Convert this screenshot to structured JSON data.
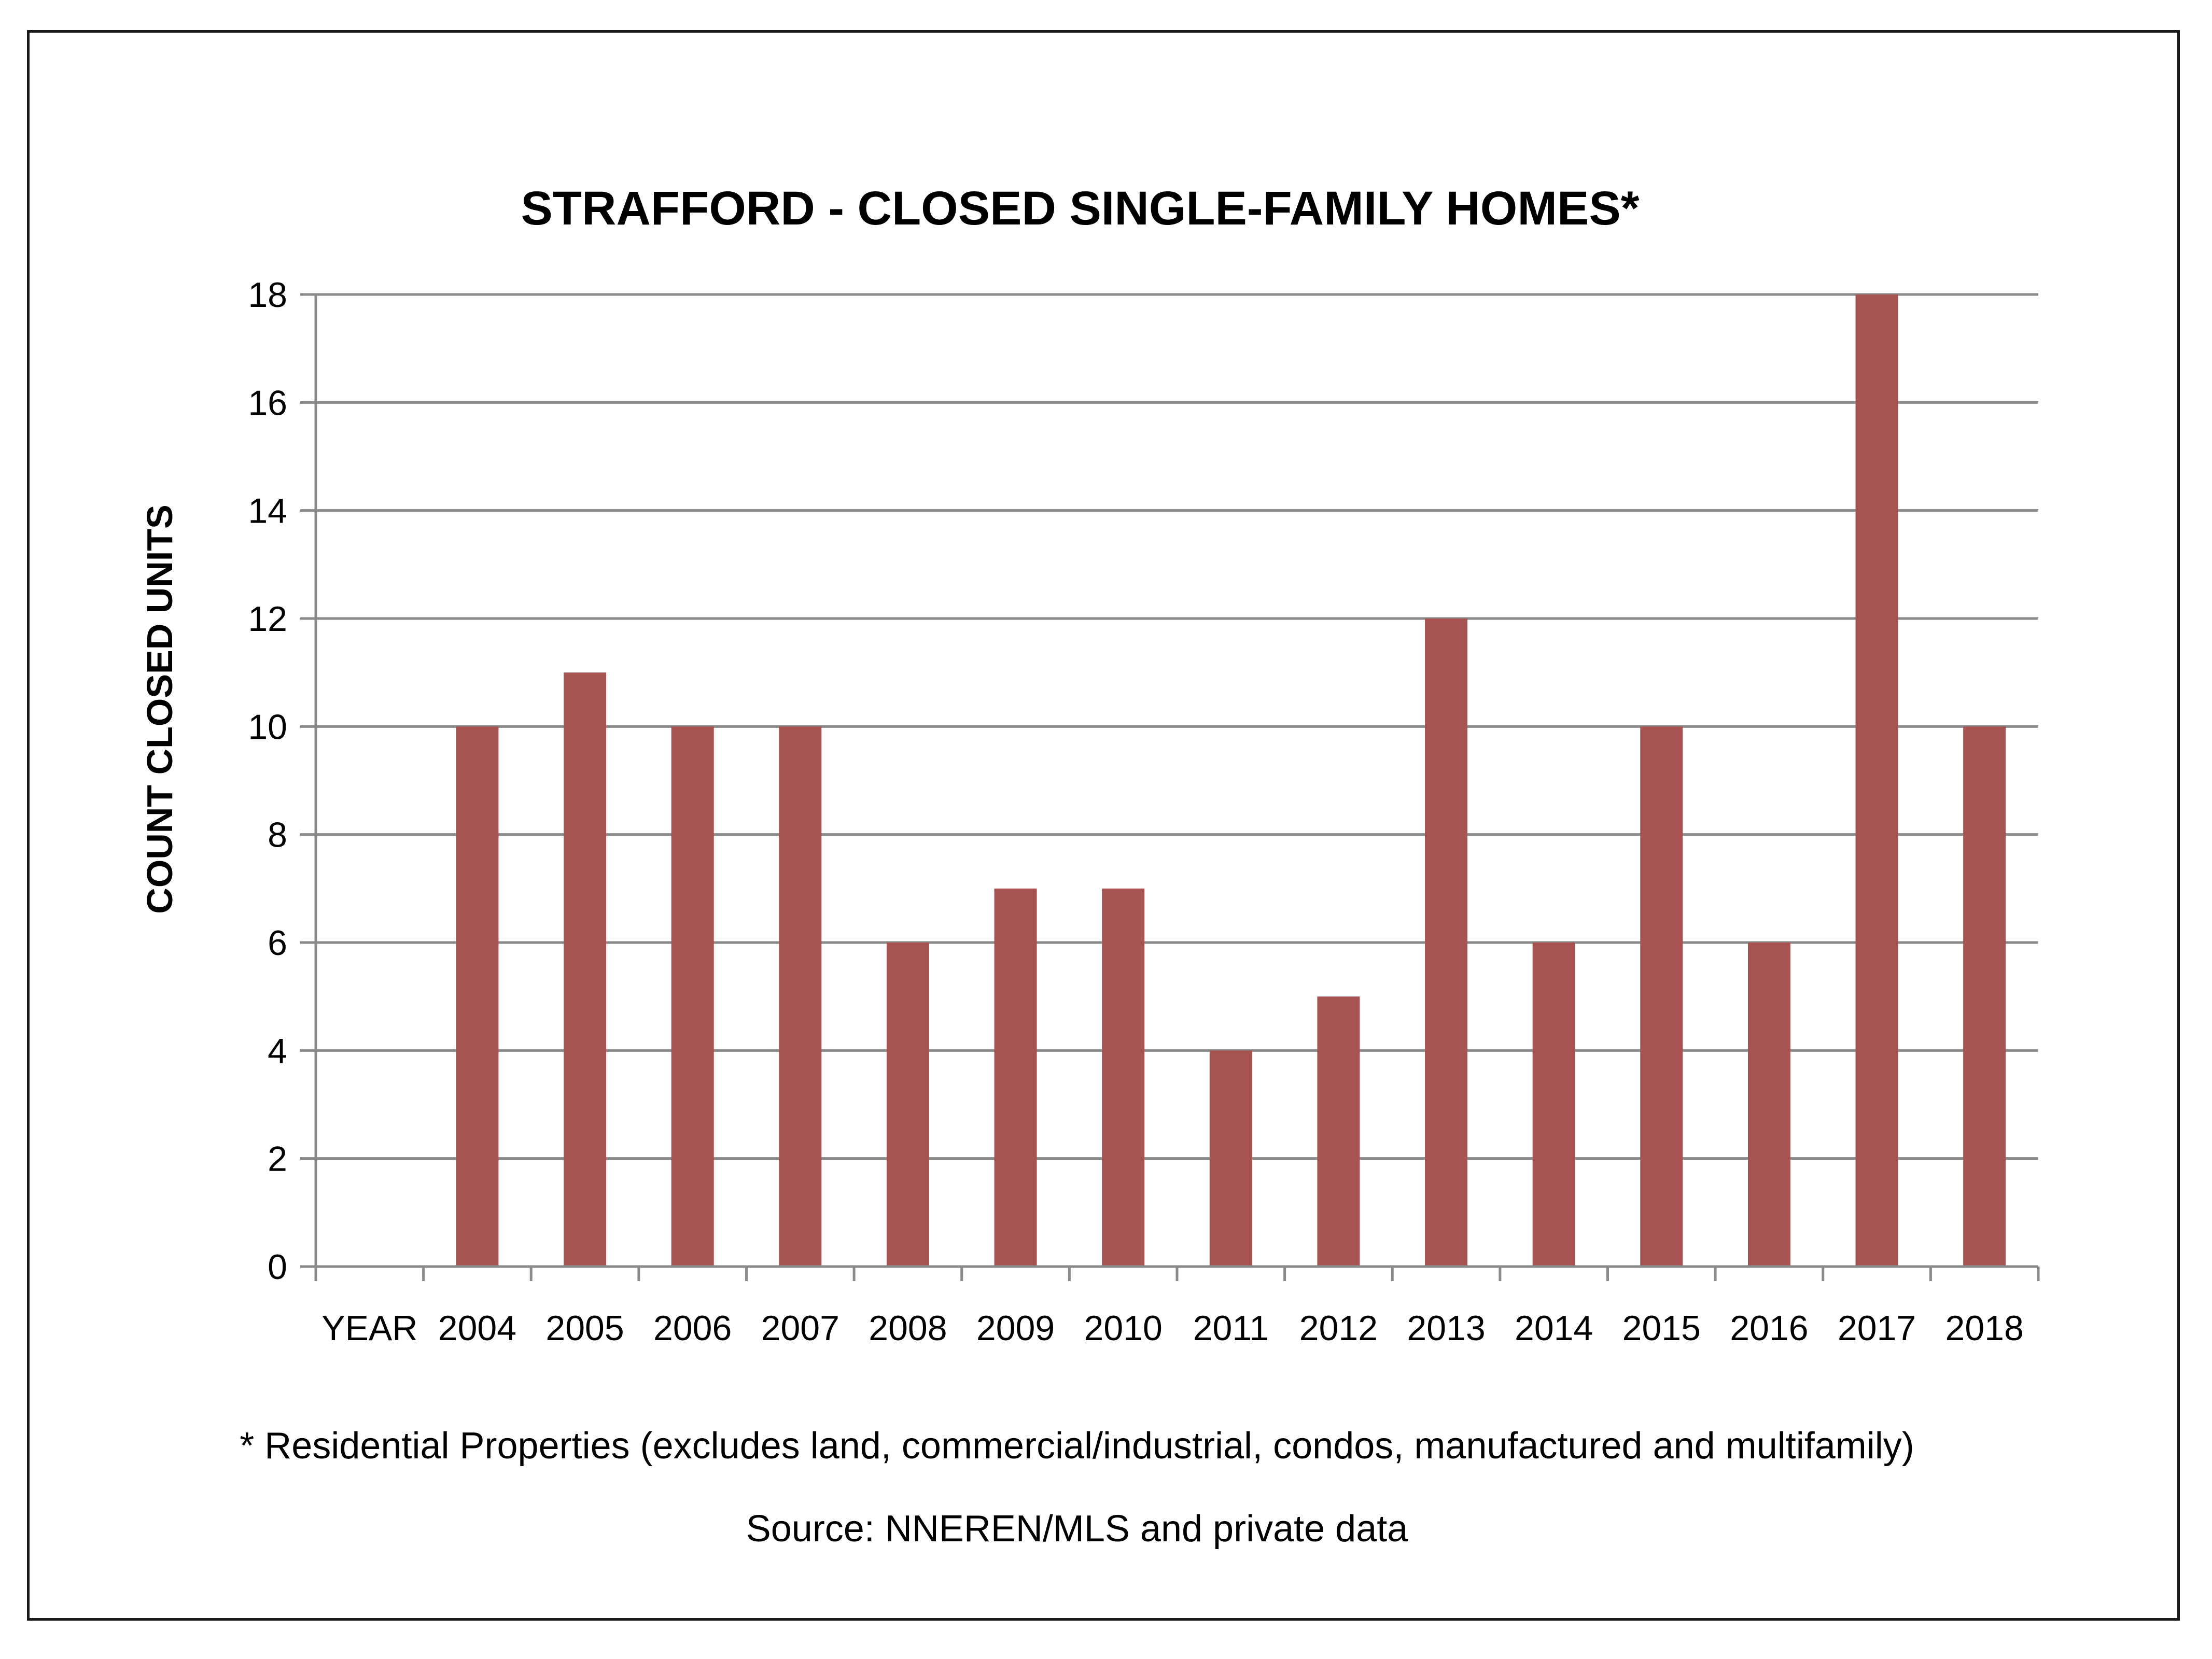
{
  "chart_data": {
    "type": "bar",
    "title": "STRAFFORD - CLOSED SINGLE-FAMILY HOMES*",
    "xlabel": "",
    "ylabel": "COUNT CLOSED UNITS",
    "categories": [
      "YEAR",
      "2004",
      "2005",
      "2006",
      "2007",
      "2008",
      "2009",
      "2010",
      "2011",
      "2012",
      "2013",
      "2014",
      "2015",
      "2016",
      "2017",
      "2018"
    ],
    "values": [
      null,
      10,
      11,
      10,
      10,
      6,
      7,
      7,
      4,
      5,
      12,
      6,
      10,
      6,
      18,
      10
    ],
    "ylim": [
      0,
      18
    ],
    "yticks": [
      0,
      2,
      4,
      6,
      8,
      10,
      12,
      14,
      16,
      18
    ],
    "grid": true,
    "bar_color": "#a65351"
  },
  "notes": {
    "footnote": "* Residential Properties (excludes land, commercial/industrial, condos, manufactured and multifamily)",
    "source": "Source: NNEREN/MLS and private data"
  }
}
